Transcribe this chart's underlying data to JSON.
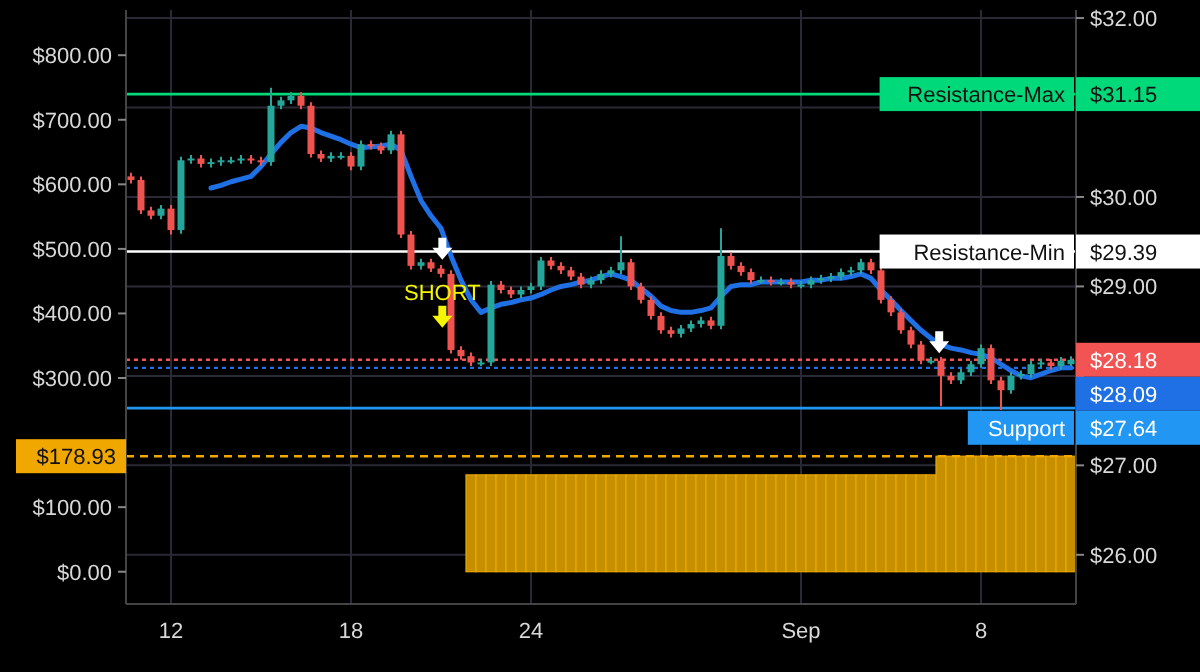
{
  "chart_data": {
    "type": "candlestick",
    "annotations": [
      {
        "text": "SHORT",
        "y": 28.85
      },
      "$28.09",
      "$27.64"
    ],
    "categories": [
      null,
      null,
      null,
      null,
      "12",
      null,
      null,
      null,
      null,
      null,
      null,
      null,
      null,
      null,
      null,
      null,
      null,
      null,
      null,
      null,
      null,
      null,
      "18",
      null,
      null,
      null,
      null,
      null,
      null,
      null,
      null,
      null,
      null,
      null,
      null,
      null,
      null,
      null,
      null,
      null,
      "24",
      null,
      null,
      null,
      null,
      null,
      null,
      null,
      null,
      null,
      null,
      null,
      null,
      null,
      null,
      null,
      null,
      null,
      null,
      null,
      null,
      null,
      null,
      null,
      null,
      null,
      null,
      "Sep",
      null,
      null,
      null,
      null,
      null,
      null,
      null,
      null,
      null,
      null,
      null,
      null,
      null,
      null,
      null,
      null,
      null,
      "8",
      null,
      null,
      null,
      null,
      null,
      null,
      null,
      null,
      null
    ],
    "ohlc": [
      [
        30.23,
        30.27,
        30.15,
        30.19
      ],
      [
        30.19,
        30.23,
        29.81,
        29.85
      ],
      [
        29.85,
        29.89,
        29.75,
        29.79
      ],
      [
        29.79,
        29.91,
        29.75,
        29.87
      ],
      [
        29.87,
        29.91,
        29.58,
        29.63
      ],
      [
        29.63,
        30.45,
        29.59,
        30.41
      ],
      [
        30.41,
        30.47,
        30.37,
        30.43
      ],
      [
        30.43,
        30.47,
        30.33,
        30.37
      ],
      [
        30.37,
        30.43,
        30.33,
        30.39
      ],
      [
        30.39,
        30.45,
        30.35,
        30.41
      ],
      [
        30.41,
        30.45,
        30.37,
        30.41
      ],
      [
        30.41,
        30.47,
        30.37,
        30.43
      ],
      [
        30.43,
        30.47,
        30.37,
        30.41
      ],
      [
        30.41,
        30.45,
        30.35,
        30.39
      ],
      [
        30.39,
        31.22,
        30.35,
        31.02
      ],
      [
        31.02,
        31.12,
        30.98,
        31.08
      ],
      [
        31.08,
        31.17,
        31.04,
        31.13
      ],
      [
        31.13,
        31.17,
        30.98,
        31.02
      ],
      [
        31.02,
        31.06,
        30.44,
        30.48
      ],
      [
        30.48,
        30.52,
        30.39,
        30.43
      ],
      [
        30.43,
        30.5,
        30.39,
        30.46
      ],
      [
        30.46,
        30.5,
        30.42,
        30.46
      ],
      [
        30.46,
        30.5,
        30.3,
        30.34
      ],
      [
        30.34,
        30.63,
        30.3,
        30.59
      ],
      [
        30.59,
        30.63,
        30.53,
        30.57
      ],
      [
        30.57,
        30.61,
        30.48,
        30.52
      ],
      [
        30.52,
        30.74,
        30.48,
        30.7
      ],
      [
        30.7,
        30.74,
        29.54,
        29.58
      ],
      [
        29.58,
        29.62,
        29.19,
        29.23
      ],
      [
        29.23,
        29.31,
        29.19,
        29.27
      ],
      [
        29.27,
        29.31,
        29.16,
        29.2
      ],
      [
        29.2,
        29.24,
        29.1,
        29.14
      ],
      [
        29.14,
        29.18,
        28.25,
        28.29
      ],
      [
        28.29,
        28.33,
        28.18,
        28.22
      ],
      [
        28.22,
        28.26,
        28.11,
        28.15
      ],
      [
        28.15,
        28.19,
        28.11,
        28.15
      ],
      [
        28.15,
        29.06,
        28.11,
        29.02
      ],
      [
        29.02,
        29.06,
        28.92,
        28.96
      ],
      [
        28.96,
        29.0,
        28.87,
        28.91
      ],
      [
        28.91,
        29.0,
        28.87,
        28.96
      ],
      [
        28.96,
        29.04,
        28.92,
        29.0
      ],
      [
        29.0,
        29.33,
        28.96,
        29.29
      ],
      [
        29.29,
        29.33,
        29.19,
        29.23
      ],
      [
        29.23,
        29.27,
        29.14,
        29.18
      ],
      [
        29.18,
        29.22,
        29.07,
        29.11
      ],
      [
        29.11,
        29.15,
        28.98,
        29.02
      ],
      [
        29.02,
        29.11,
        28.98,
        29.07
      ],
      [
        29.07,
        29.18,
        29.03,
        29.14
      ],
      [
        29.14,
        29.22,
        29.1,
        29.18
      ],
      [
        29.18,
        29.56,
        29.14,
        29.27
      ],
      [
        29.27,
        29.31,
        28.96,
        29.0
      ],
      [
        29.0,
        29.04,
        28.81,
        28.85
      ],
      [
        28.85,
        28.89,
        28.63,
        28.67
      ],
      [
        28.67,
        28.71,
        28.47,
        28.51
      ],
      [
        28.51,
        28.55,
        28.43,
        28.47
      ],
      [
        28.47,
        28.57,
        28.43,
        28.53
      ],
      [
        28.53,
        28.62,
        28.49,
        28.58
      ],
      [
        28.58,
        28.66,
        28.54,
        28.62
      ],
      [
        28.62,
        28.66,
        28.52,
        28.56
      ],
      [
        28.56,
        29.65,
        28.52,
        29.34
      ],
      [
        29.34,
        29.38,
        29.19,
        29.23
      ],
      [
        29.23,
        29.27,
        29.12,
        29.16
      ],
      [
        29.16,
        29.2,
        29.03,
        29.07
      ],
      [
        29.07,
        29.11,
        29.03,
        29.07
      ],
      [
        29.07,
        29.11,
        29.01,
        29.05
      ],
      [
        29.05,
        29.09,
        29.01,
        29.05
      ],
      [
        29.05,
        29.09,
        28.98,
        29.02
      ],
      [
        29.02,
        29.06,
        28.98,
        29.02
      ],
      [
        29.02,
        29.11,
        28.98,
        29.07
      ],
      [
        29.07,
        29.13,
        29.03,
        29.09
      ],
      [
        29.09,
        29.15,
        29.05,
        29.11
      ],
      [
        29.11,
        29.2,
        29.07,
        29.16
      ],
      [
        29.16,
        29.22,
        29.12,
        29.18
      ],
      [
        29.18,
        29.31,
        29.14,
        29.27
      ],
      [
        29.27,
        29.31,
        29.14,
        29.18
      ],
      [
        29.18,
        29.22,
        28.81,
        28.85
      ],
      [
        28.85,
        28.89,
        28.67,
        28.71
      ],
      [
        28.71,
        28.75,
        28.47,
        28.51
      ],
      [
        28.51,
        28.55,
        28.31,
        28.35
      ],
      [
        28.35,
        28.39,
        28.13,
        28.17
      ],
      [
        28.17,
        28.21,
        28.13,
        28.17
      ],
      [
        28.17,
        28.21,
        27.66,
        28.0
      ],
      [
        28.0,
        28.04,
        27.91,
        27.95
      ],
      [
        27.95,
        28.08,
        27.91,
        28.04
      ],
      [
        28.04,
        28.17,
        28.0,
        28.13
      ],
      [
        28.13,
        28.35,
        28.09,
        28.31
      ],
      [
        28.31,
        28.35,
        27.91,
        27.95
      ],
      [
        27.95,
        27.99,
        27.62,
        27.84
      ],
      [
        27.84,
        28.04,
        27.8,
        28.0
      ],
      [
        28.0,
        28.06,
        27.96,
        28.02
      ],
      [
        28.02,
        28.17,
        27.98,
        28.13
      ],
      [
        28.13,
        28.19,
        28.09,
        28.15
      ],
      [
        28.15,
        28.19,
        28.07,
        28.11
      ],
      [
        28.11,
        28.21,
        28.07,
        28.17
      ],
      [
        28.13,
        28.22,
        28.11,
        28.18
      ]
    ],
    "series": [
      {
        "type": "line",
        "color": "#1f6fe5",
        "values": [
          null,
          null,
          null,
          null,
          null,
          null,
          null,
          null,
          30.1,
          30.13,
          30.17,
          30.2,
          30.23,
          30.34,
          30.48,
          30.61,
          30.72,
          30.79,
          30.77,
          30.72,
          30.68,
          30.64,
          30.59,
          30.55,
          30.56,
          30.57,
          30.59,
          30.52,
          30.23,
          29.96,
          29.79,
          29.65,
          29.34,
          29.07,
          28.85,
          28.71,
          28.76,
          28.8,
          28.82,
          28.85,
          28.87,
          28.91,
          28.96,
          29.0,
          29.02,
          29.05,
          29.07,
          29.11,
          29.14,
          29.11,
          29.07,
          28.98,
          28.89,
          28.78,
          28.73,
          28.71,
          28.71,
          28.73,
          28.76,
          28.89,
          29.0,
          29.02,
          29.02,
          29.05,
          29.05,
          29.05,
          29.05,
          29.05,
          29.07,
          29.07,
          29.09,
          29.09,
          29.11,
          29.14,
          29.09,
          28.96,
          28.85,
          28.73,
          28.62,
          28.51,
          28.42,
          28.35,
          28.31,
          28.29,
          28.26,
          28.24,
          28.2,
          28.13,
          28.06,
          28.0,
          27.98,
          28.02,
          28.06,
          28.09,
          28.09
        ]
      },
      {
        "type": "bar",
        "axis": "y2",
        "color": "#c68f00",
        "values": [
          0,
          0,
          0,
          0,
          0,
          0,
          0,
          0,
          0,
          0,
          0,
          0,
          0,
          0,
          0,
          0,
          0,
          0,
          0,
          0,
          0,
          0,
          0,
          0,
          0,
          0,
          0,
          0,
          0,
          0,
          0,
          0,
          0,
          0,
          150,
          150,
          150,
          150,
          150,
          150,
          150,
          150,
          150,
          150,
          150,
          150,
          150,
          150,
          150,
          150,
          150,
          150,
          150,
          150,
          150,
          150,
          150,
          150,
          150,
          150,
          150,
          150,
          150,
          150,
          150,
          150,
          150,
          150,
          150,
          150,
          150,
          150,
          150,
          150,
          150,
          150,
          150,
          150,
          150,
          150,
          150,
          178.93,
          178.93,
          178.93,
          178.93,
          178.93,
          178.93,
          178.93,
          178.93,
          178.93,
          178.93,
          178.93,
          178.93,
          178.93,
          178.93
        ]
      }
    ],
    "ylim": [
      25.45,
      32.09
    ],
    "yticks": [
      {
        "value": 32,
        "label": "$32.00"
      },
      {
        "value": 31,
        "label": null
      },
      {
        "value": 30,
        "label": "$30.00"
      },
      {
        "value": 29,
        "label": "$29.00"
      },
      {
        "value": 28,
        "label": null
      },
      {
        "value": 27,
        "label": "$27.00"
      },
      {
        "value": 26,
        "label": "$26.00"
      },
      {
        "value": 31.15,
        "label": "$31.15"
      },
      {
        "value": 29.39,
        "label": "$29.39"
      },
      {
        "value": 28.18,
        "label": "$28.18"
      }
    ],
    "y2lim": [
      -50,
      870
    ],
    "y2ticks": [
      {
        "value": 0,
        "label": "$0.00"
      },
      {
        "value": 100,
        "label": "$100.00"
      },
      {
        "value": 200,
        "label": null
      },
      {
        "value": 300,
        "label": "$300.00"
      },
      {
        "value": 400,
        "label": "$400.00"
      },
      {
        "value": 500,
        "label": "$500.00"
      },
      {
        "value": 600,
        "label": "$600.00"
      },
      {
        "value": 700,
        "label": "$700.00"
      },
      {
        "value": 800,
        "label": "$800.00"
      },
      {
        "value": 178.93,
        "label": "$178.93"
      }
    ],
    "ref_lines": [
      {
        "axis": "y",
        "value": 31.15,
        "label": "Resistance-Max",
        "color": "#00d97a",
        "line_style": "solid"
      },
      {
        "axis": "y",
        "value": 29.39,
        "label": "Resistance-Min",
        "color": "#ffffff",
        "line_style": "solid"
      },
      {
        "axis": "y",
        "value": 28.18,
        "color": "#f25353",
        "line_style": "dotted"
      },
      {
        "axis": "y",
        "value": 28.09,
        "color": "#1f6fe5",
        "line_style": "dotted"
      },
      {
        "axis": "y",
        "value": 27.64,
        "label": "Support",
        "color": "#2196f3",
        "line_style": "solid"
      },
      {
        "axis": "y2",
        "value": 178.93,
        "color": "#f0a800",
        "line_style": "dashed"
      }
    ],
    "grid": true
  }
}
